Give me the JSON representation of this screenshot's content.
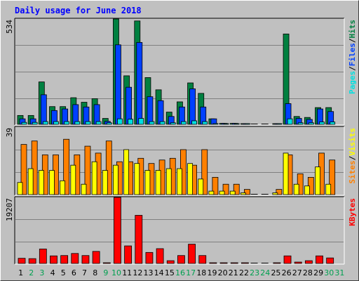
{
  "chart_data": {
    "type": "bar",
    "title": "Daily usage for June 2018",
    "days": [
      "1",
      "2",
      "3",
      "4",
      "5",
      "6",
      "7",
      "8",
      "9",
      "10",
      "11",
      "12",
      "13",
      "14",
      "15",
      "16",
      "17",
      "18",
      "19",
      "20",
      "21",
      "22",
      "23",
      "24",
      "25",
      "26",
      "27",
      "28",
      "29",
      "30",
      "31"
    ],
    "weekend_days": [
      "2",
      "3",
      "9",
      "10",
      "16",
      "17",
      "23",
      "24",
      "30",
      "31"
    ],
    "panels": [
      {
        "name": "top",
        "max_label": "534",
        "ymax": 534,
        "legend": [
          {
            "text": "Pages",
            "color": "#00e0e0"
          },
          {
            "text": "/",
            "color": "#000000"
          },
          {
            "text": "Files",
            "color": "#0040ff"
          },
          {
            "text": "/",
            "color": "#000000"
          },
          {
            "text": "Hits",
            "color": "#008040"
          }
        ],
        "series": [
          {
            "name": "Hits",
            "color": "#008040",
            "values": [
              45,
              45,
              215,
              90,
              90,
              135,
              112,
              130,
              30,
              534,
              246,
              524,
              237,
              175,
              62,
              114,
              210,
              157,
              28,
              5,
              5,
              3,
              0,
              0,
              3,
              458,
              40,
              35,
              85,
              85,
              0
            ]
          },
          {
            "name": "Files",
            "color": "#0040ff",
            "values": [
              28,
              28,
              150,
              70,
              78,
              100,
              88,
              100,
              15,
              403,
              188,
              415,
              140,
              120,
              40,
              88,
              180,
              88,
              28,
              5,
              5,
              3,
              0,
              0,
              3,
              105,
              30,
              25,
              78,
              65,
              0
            ]
          },
          {
            "name": "Pages",
            "color": "#00e0e0",
            "values": [
              10,
              10,
              14,
              14,
              14,
              14,
              14,
              14,
              8,
              28,
              26,
              30,
              14,
              14,
              8,
              14,
              18,
              14,
              4,
              2,
              2,
              1,
              0,
              0,
              1,
              28,
              8,
              8,
              12,
              12,
              0
            ]
          }
        ]
      },
      {
        "name": "middle",
        "max_label": "39",
        "ymax": 39,
        "legend": [
          {
            "text": "Sites",
            "color": "#ff8000"
          },
          {
            "text": "/",
            "color": "#000000"
          },
          {
            "text": "Visits",
            "color": "#ffff00"
          }
        ],
        "series": [
          {
            "name": "Visits",
            "color": "#ffff00",
            "values": [
              7,
              15,
              14,
              14,
              8,
              17,
              6,
              19,
              14,
              17,
              26,
              18,
              14,
              14,
              15,
              15,
              18,
              9,
              2,
              2,
              2,
              1,
              0,
              0,
              1,
              24,
              6,
              5,
              16,
              6,
              0
            ]
          },
          {
            "name": "Sites",
            "color": "#ff8000",
            "values": [
              29,
              31,
              23,
              23,
              32,
              23,
              28,
              24,
              31,
              19,
              19,
              21,
              18,
              20,
              21,
              26,
              17,
              26,
              10,
              6,
              6,
              3,
              0,
              0,
              3,
              23,
              12,
              10,
              24,
              20,
              0
            ]
          }
        ]
      },
      {
        "name": "bottom",
        "max_label": "19207",
        "ymax": 19207,
        "legend": [
          {
            "text": "KBytes",
            "color": "#ff0000"
          }
        ],
        "series": [
          {
            "name": "KBytes",
            "color": "#ff0000",
            "values": [
              1500,
              1400,
              4200,
              2200,
              2300,
              2900,
              2300,
              3500,
              150,
              19207,
              5100,
              14000,
              3200,
              4300,
              800,
              2300,
              5600,
              2300,
              200,
              100,
              100,
              50,
              0,
              0,
              30,
              2200,
              400,
              800,
              2200,
              1600,
              0
            ]
          }
        ]
      }
    ]
  }
}
